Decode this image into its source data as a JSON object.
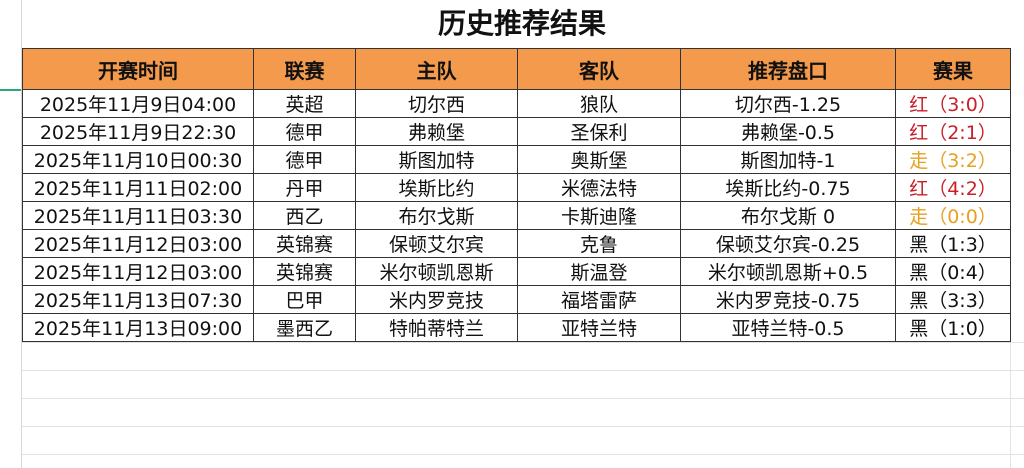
{
  "title": "历史推荐结果",
  "headers": [
    "开赛时间",
    "联赛",
    "主队",
    "客队",
    "推荐盘口",
    "赛果"
  ],
  "colors": {
    "header_bg": "#f39a4c",
    "win": "#c8202a",
    "draw": "#e8a020",
    "loss": "#111111"
  },
  "rows": [
    {
      "time": "2025年11月9日04:00",
      "league": "英超",
      "home": "切尔西",
      "away": "狼队",
      "pick": "切尔西-1.25",
      "result": "红（3:0）",
      "status": "red"
    },
    {
      "time": "2025年11月9日22:30",
      "league": "德甲",
      "home": "弗赖堡",
      "away": "圣保利",
      "pick": "弗赖堡-0.5",
      "result": "红（2:1）",
      "status": "red"
    },
    {
      "time": "2025年11月10日00:30",
      "league": "德甲",
      "home": "斯图加特",
      "away": "奥斯堡",
      "pick": "斯图加特-1",
      "result": "走（3:2）",
      "status": "draw"
    },
    {
      "time": "2025年11月11日02:00",
      "league": "丹甲",
      "home": "埃斯比约",
      "away": "米德法特",
      "pick": "埃斯比约-0.75",
      "result": "红（4:2）",
      "status": "red"
    },
    {
      "time": "2025年11月11日03:30",
      "league": "西乙",
      "home": "布尔戈斯",
      "away": "卡斯迪隆",
      "pick": "布尔戈斯 0",
      "result": "走（0:0）",
      "status": "draw"
    },
    {
      "time": "2025年11月12日03:00",
      "league": "英锦赛",
      "home": "保顿艾尔宾",
      "away": "克鲁",
      "pick": "保顿艾尔宾-0.25",
      "result": "黑（1:3）",
      "status": "black"
    },
    {
      "time": "2025年11月12日03:00",
      "league": "英锦赛",
      "home": "米尔顿凯恩斯",
      "away": "斯温登",
      "pick": "米尔顿凯恩斯+0.5",
      "result": "黑（0:4）",
      "status": "black"
    },
    {
      "time": "2025年11月13日07:30",
      "league": "巴甲",
      "home": "米内罗竞技",
      "away": "福塔雷萨",
      "pick": "米内罗竞技-0.75",
      "result": "黑（3:3）",
      "status": "black"
    },
    {
      "time": "2025年11月13日09:00",
      "league": "墨西乙",
      "home": "特帕蒂特兰",
      "away": "亚特兰特",
      "pick": "亚特兰特-0.5",
      "result": "黑（1:0）",
      "status": "black"
    }
  ]
}
